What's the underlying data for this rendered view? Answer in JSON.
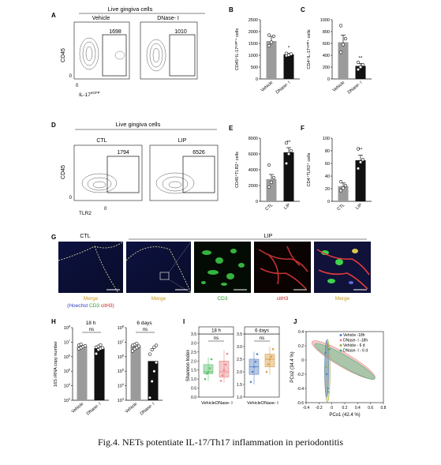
{
  "caption": "Fig.4. NETs potentiate IL-17/Th17 inflammation in periodontitis",
  "panels": {
    "A": {
      "letter": "A",
      "header": "Live gingiva cells",
      "groups": [
        "Vehicle",
        "DNase- I"
      ],
      "gate_counts": [
        "1698",
        "1010"
      ],
      "ylabel": "CD45",
      "xlabel": "IL-17",
      "xlabel_sup": "eGFP",
      "ytick": "0",
      "xtick": "0"
    },
    "D": {
      "letter": "D",
      "header": "Live gingiva cells",
      "groups": [
        "CTL",
        "LIP"
      ],
      "gate_counts": [
        "1794",
        "6526"
      ],
      "ylabel": "CD45",
      "xlabel": "TLR2",
      "ytick": "0",
      "xtick": "0"
    },
    "G": {
      "letter": "G",
      "top_labels": [
        "CTL",
        "LIP"
      ],
      "merge_legend": [
        {
          "text": "(Hoechst",
          "color": "#2a3cc8"
        },
        {
          "text": "CD3",
          "color": "#2a9a2a"
        },
        {
          "text": "citH3)",
          "color": "#d02020"
        }
      ],
      "tile_labels": [
        {
          "text": "Merge",
          "color": "#c99a1a"
        },
        {
          "text": "Merge",
          "color": "#c99a1a"
        },
        {
          "text": "CD3",
          "color": "#2a9a2a"
        },
        {
          "text": "citH3",
          "color": "#d02020"
        },
        {
          "text": "Merge",
          "color": "#c99a1a"
        }
      ]
    },
    "I": {
      "letter": "I",
      "ylabel": "Shannon Index",
      "panels": [
        "18 h",
        "6 days"
      ],
      "ns": "ns",
      "xcats": [
        "Vehicle",
        "DNase- I"
      ]
    },
    "J": {
      "letter": "J",
      "xlabel": "PCo1 (42.4 %)",
      "ylabel": "PCo2 (34.4 %)",
      "legend": [
        {
          "text": "Vehicle  -18h",
          "color": "#4d7fbf"
        },
        {
          "text": "DNase- I -18h",
          "color": "#e98a8a"
        },
        {
          "text": "Vehicle  - 6 d",
          "color": "#9aa83a"
        },
        {
          "text": "DNase- I - 6 d",
          "color": "#3ea872"
        }
      ]
    }
  },
  "chart_data": [
    {
      "panel": "B",
      "type": "bar",
      "letter": "B",
      "categories": [
        "Vehicle",
        "DNase- I"
      ],
      "values": [
        1600,
        1040
      ],
      "errors": [
        200,
        40
      ],
      "points": [
        [
          1400,
          1550,
          1800,
          1850
        ],
        [
          990,
          1010,
          1050,
          1080
        ]
      ],
      "colors": [
        "#9b9b9b",
        "#111111"
      ],
      "ylabel": "CD45⁺IL-17ᵉᴳᶠᴾ⁺ cells",
      "ylim": [
        0,
        2500
      ],
      "yticks": [
        0,
        500,
        1000,
        1500,
        2000,
        2500
      ],
      "sig": [
        "",
        "*"
      ]
    },
    {
      "panel": "C",
      "type": "bar",
      "letter": "C",
      "categories": [
        "Vehicle",
        "DNase- I"
      ],
      "values": [
        620,
        220
      ],
      "errors": [
        120,
        40
      ],
      "points": [
        [
          450,
          580,
          680,
          900
        ],
        [
          160,
          200,
          240,
          280
        ]
      ],
      "colors": [
        "#9b9b9b",
        "#111111"
      ],
      "ylabel": "CD4⁺IL-17ᵉᴳᶠᴾ⁺ cells",
      "ylim": [
        0,
        1000
      ],
      "yticks": [
        0,
        200,
        400,
        600,
        800,
        1000
      ],
      "sig": [
        "",
        "**"
      ]
    },
    {
      "panel": "E",
      "type": "bar",
      "letter": "E",
      "categories": [
        "CTL",
        "LIP"
      ],
      "values": [
        2800,
        6200
      ],
      "errors": [
        600,
        600
      ],
      "points": [
        [
          1800,
          2400,
          3000,
          4600
        ],
        [
          4800,
          6000,
          6400,
          7400
        ]
      ],
      "colors": [
        "#9b9b9b",
        "#111111"
      ],
      "ylabel": "CD45⁺TLR2⁺ cells",
      "ylim": [
        0,
        8000
      ],
      "yticks": [
        0,
        2000,
        4000,
        6000,
        8000
      ],
      "sig": [
        "",
        "**"
      ]
    },
    {
      "panel": "F",
      "type": "bar",
      "letter": "F",
      "categories": [
        "CTL",
        "LIP"
      ],
      "values": [
        24,
        65
      ],
      "errors": [
        5,
        8
      ],
      "points": [
        [
          17,
          21,
          25,
          31
        ],
        [
          52,
          62,
          66,
          83
        ]
      ],
      "colors": [
        "#9b9b9b",
        "#111111"
      ],
      "ylabel": "CD4⁺TLR2⁺ cells",
      "ylim": [
        0,
        100
      ],
      "yticks": [
        0,
        20,
        40,
        60,
        80,
        100
      ],
      "sig": [
        "",
        "**"
      ]
    },
    {
      "panel": "H",
      "type": "bar",
      "letter": "H",
      "scale": "log",
      "ylabel": "16S rRNA copy number",
      "ylim": [
        1000,
        100000000
      ],
      "subpanels": [
        {
          "title": "18 h",
          "categories": [
            "Vehicle",
            "DNase- I"
          ],
          "values": [
            5000000,
            3800000
          ],
          "points": [
            [
              3500000,
              4200000,
              5000000,
              5600000,
              6200000,
              7000000
            ],
            [
              1600000,
              3000000,
              3600000,
              4000000,
              4500000,
              5200000,
              6400000
            ]
          ],
          "colors": [
            "#9b9b9b",
            "#111111"
          ],
          "sig": "ns"
        },
        {
          "title": "6 days",
          "categories": [
            "Vehicle",
            "DNase- I"
          ],
          "values": [
            5400000,
            500000
          ],
          "points": [
            [
              2500000,
              3400000,
              4200000,
              5200000,
              6000000,
              6800000,
              8000000
            ],
            [
              1500,
              20000,
              100000,
              400000,
              1500000,
              3000000,
              4500000,
              6000000
            ]
          ],
          "colors": [
            "#9b9b9b",
            "#111111"
          ],
          "sig": "ns"
        }
      ]
    },
    {
      "panel": "I",
      "type": "box",
      "subpanels": [
        {
          "title": "18 h",
          "categories": [
            "Vehicle",
            "DNase- I"
          ],
          "boxes": [
            {
              "q1": 1.3,
              "median": 1.4,
              "q3": 1.8,
              "min": 0.9,
              "max": 2.2
            },
            {
              "q1": 1.1,
              "median": 1.4,
              "q3": 2.0,
              "min": 0.8,
              "max": 2.6
            }
          ],
          "points": [
            [
              1.0,
              1.3,
              1.4,
              1.6,
              2.1
            ],
            [
              0.9,
              1.2,
              1.5,
              1.8,
              2.4
            ]
          ],
          "colors": [
            "#5bbf6a",
            "#e98a8a"
          ],
          "ylim": [
            0,
            3.5
          ],
          "yticks": [
            0,
            0.5,
            1.0,
            1.5,
            2.0,
            2.5,
            3.0,
            3.5
          ],
          "sig": "ns"
        },
        {
          "title": "6 days",
          "categories": [
            "Vehicle",
            "DNase- I"
          ],
          "boxes": [
            {
              "q1": 1.9,
              "median": 2.2,
              "q3": 2.5,
              "min": 1.5,
              "max": 2.8
            },
            {
              "q1": 2.2,
              "median": 2.5,
              "q3": 2.7,
              "min": 1.9,
              "max": 3.0
            }
          ],
          "points": [
            [
              1.6,
              2.0,
              2.2,
              2.4,
              2.7
            ],
            [
              2.0,
              2.3,
              2.5,
              2.6,
              2.9
            ]
          ],
          "colors": [
            "#5f86c4",
            "#d9a04a"
          ],
          "ylim": [
            1.0,
            3.5
          ],
          "yticks": [
            1.0,
            1.5,
            2.0,
            2.5,
            3.0,
            3.5
          ],
          "sig": "ns"
        }
      ]
    },
    {
      "panel": "J",
      "type": "scatter",
      "xlim": [
        -0.4,
        0.8
      ],
      "ylim": [
        -0.6,
        0.4
      ],
      "xticks": [
        -0.4,
        -0.2,
        0.0,
        0.2,
        0.4,
        0.6,
        0.8
      ],
      "yticks": [
        -0.6,
        -0.4,
        -0.2,
        0.0,
        0.2,
        0.4
      ],
      "series": [
        {
          "name": "Vehicle  -18h",
          "x": [
            -0.08,
            -0.1,
            -0.06
          ],
          "y": [
            -0.2,
            0.1,
            -0.4
          ]
        },
        {
          "name": "DNase- I -18h",
          "x": [
            -0.05,
            -0.07
          ],
          "y": [
            0.05,
            -0.3
          ]
        },
        {
          "name": "Vehicle  - 6 d",
          "x": [
            -0.06,
            -0.09
          ],
          "y": [
            0.2,
            -0.1
          ]
        },
        {
          "name": "DNase- I - 6 d",
          "x": [
            -0.04,
            -0.06
          ],
          "y": [
            0.15,
            -0.45
          ]
        }
      ]
    }
  ]
}
